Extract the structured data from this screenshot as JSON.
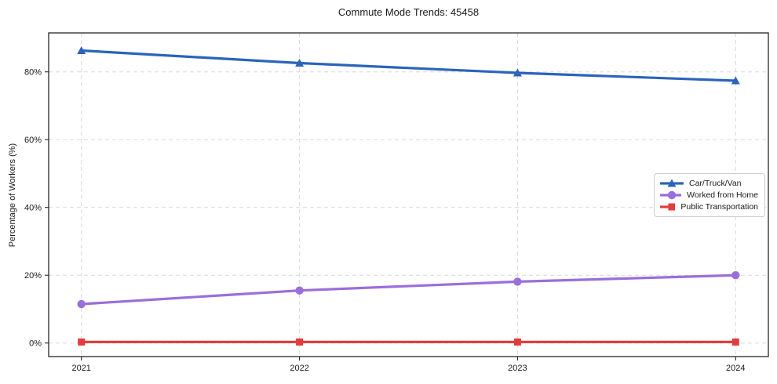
{
  "chart_data": {
    "type": "line",
    "title": "Commute Mode Trends: 45458",
    "xlabel": "",
    "ylabel": "Percentage of Workers (%)",
    "x": [
      2021,
      2022,
      2023,
      2024
    ],
    "x_tick_labels": [
      "2021",
      "2022",
      "2023",
      "2024"
    ],
    "y_ticks": [
      0,
      20,
      40,
      60,
      80
    ],
    "y_tick_labels": [
      "0%",
      "20%",
      "40%",
      "60%",
      "80%"
    ],
    "xlim": [
      2020.85,
      2024.15
    ],
    "ylim": [
      -4,
      91.5
    ],
    "grid": true,
    "grid_style": "dashed",
    "legend_position": "center-right",
    "series": [
      {
        "name": "Car/Truck/Van",
        "color": "#2b64ba",
        "marker": "triangle",
        "values": [
          86.3,
          82.6,
          79.7,
          77.4
        ]
      },
      {
        "name": "Worked from Home",
        "color": "#9a6edb",
        "marker": "circle",
        "values": [
          11.5,
          15.5,
          18.1,
          20.0
        ]
      },
      {
        "name": "Public Transportation",
        "color": "#e23d3d",
        "marker": "square",
        "values": [
          0.3,
          0.3,
          0.3,
          0.3
        ]
      }
    ]
  }
}
